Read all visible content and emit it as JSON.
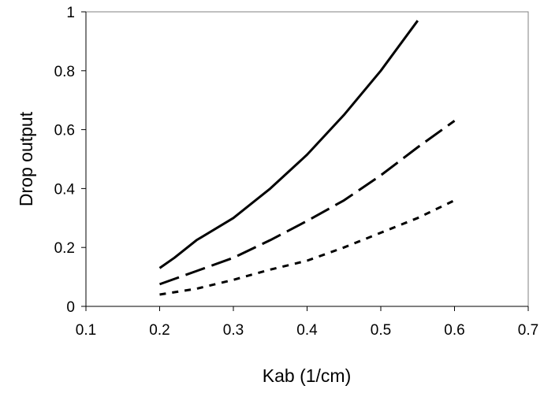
{
  "chart_data": {
    "type": "line",
    "title": "",
    "xlabel": "Kab (1/cm)",
    "ylabel": "Drop output",
    "xlim": [
      0.1,
      0.7
    ],
    "ylim": [
      0,
      1
    ],
    "xticks": [
      "0.1",
      "0.2",
      "0.3",
      "0.4",
      "0.5",
      "0.6",
      "0.7"
    ],
    "yticks": [
      "0",
      "0.2",
      "0.4",
      "0.6",
      "0.8",
      "1"
    ],
    "grid": false,
    "legend": "none",
    "series": [
      {
        "style": "solid",
        "color": "#000000",
        "x": [
          0.2,
          0.22,
          0.25,
          0.3,
          0.35,
          0.4,
          0.45,
          0.5,
          0.55
        ],
        "y": [
          0.13,
          0.165,
          0.225,
          0.3,
          0.4,
          0.515,
          0.65,
          0.8,
          0.97
        ]
      },
      {
        "style": "long-dash",
        "color": "#000000",
        "x": [
          0.2,
          0.25,
          0.3,
          0.35,
          0.4,
          0.45,
          0.5,
          0.55,
          0.6
        ],
        "y": [
          0.075,
          0.12,
          0.165,
          0.225,
          0.29,
          0.36,
          0.445,
          0.54,
          0.63
        ]
      },
      {
        "style": "short-dash",
        "color": "#000000",
        "x": [
          0.2,
          0.25,
          0.3,
          0.35,
          0.4,
          0.45,
          0.5,
          0.55,
          0.6
        ],
        "y": [
          0.04,
          0.06,
          0.09,
          0.125,
          0.155,
          0.2,
          0.25,
          0.3,
          0.36
        ]
      }
    ]
  }
}
